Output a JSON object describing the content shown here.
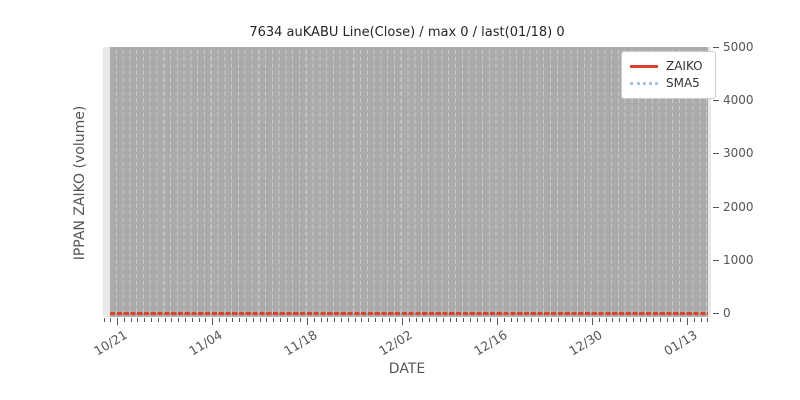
{
  "chart_data": {
    "type": "line",
    "title": "7634 auKABU Line(Close) / max 0 / last(01/18) 0",
    "xlabel": "DATE",
    "ylabel": "IPPAN ZAIKO (volume)",
    "x_ticklabels": [
      "10/21",
      "11/04",
      "11/18",
      "12/02",
      "12/16",
      "12/30",
      "01/13"
    ],
    "x_minor_tick_unit": "1 day",
    "y_ticks": [
      0,
      1000,
      2000,
      3000,
      4000,
      5000
    ],
    "ylim": [
      0,
      5000
    ],
    "y_axis_side": "right",
    "grid": "vertical-dashed-daily-minor",
    "plot_background": "#ababab",
    "margin_background": "#e8e8e8",
    "gridline_color": "#c9c9c9",
    "legend": {
      "position": "upper right",
      "entries": [
        {
          "label": "ZAIKO",
          "line_style": "solid",
          "color": "#d9452c"
        },
        {
          "label": "SMA5",
          "line_style": "dotted",
          "color": "#a9c4e4"
        }
      ]
    },
    "series": [
      {
        "name": "ZAIKO",
        "style": "solid",
        "color": "#d9452c",
        "constant_value": 0
      },
      {
        "name": "SMA5",
        "style": "dotted",
        "color": "#a9c4e4",
        "constant_value": 0
      }
    ],
    "annotations": {
      "max": 0,
      "last_date": "01/18",
      "last_value": 0
    }
  }
}
